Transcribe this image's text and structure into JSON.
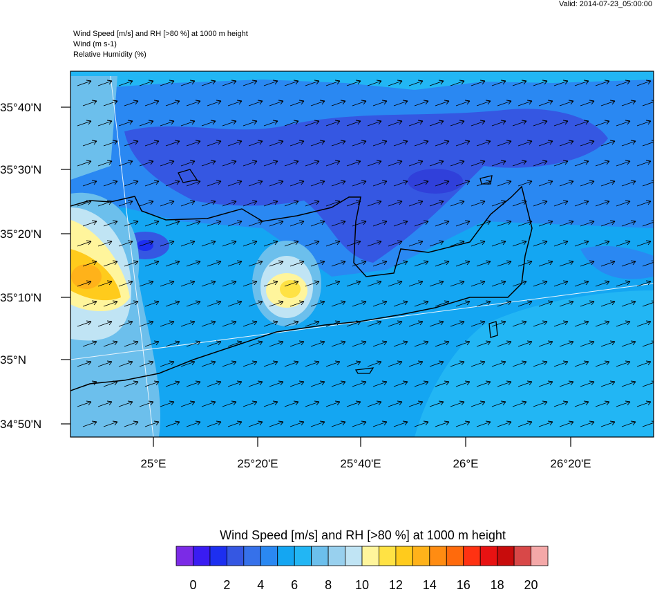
{
  "header": {
    "valid": "Valid: 2014-07-23_05:00:00",
    "lines": [
      "Wind Speed [m/s] and RH [>80 %] at 1000 m height",
      "Wind   (m s-1)",
      "Relative Humidity   (%)"
    ]
  },
  "map": {
    "lat_labels": [
      "35°40'N",
      "35°30'N",
      "35°20'N",
      "35°10'N",
      "35°N",
      "34°50'N"
    ],
    "lon_labels": [
      "25°E",
      "25°20'E",
      "25°40'E",
      "26°E",
      "26°20'E"
    ]
  },
  "colorbar": {
    "title": "Wind Speed [m/s] and RH [>80 %] at 1000 m height",
    "colors": [
      "#7b2be6",
      "#3a1cf2",
      "#1d2ff0",
      "#3557e2",
      "#3671ea",
      "#2a88f2",
      "#14a6f2",
      "#22b6f4",
      "#6cbfec",
      "#98d0ee",
      "#c0e4f4",
      "#fff59c",
      "#ffe244",
      "#ffcb1c",
      "#ffb21a",
      "#ff8c12",
      "#ff6a0c",
      "#ff3212",
      "#e81212",
      "#c80c0c",
      "#d84848",
      "#f4a8a8"
    ],
    "ticks": [
      0,
      2,
      4,
      6,
      8,
      10,
      12,
      14,
      16,
      18,
      20
    ]
  }
}
